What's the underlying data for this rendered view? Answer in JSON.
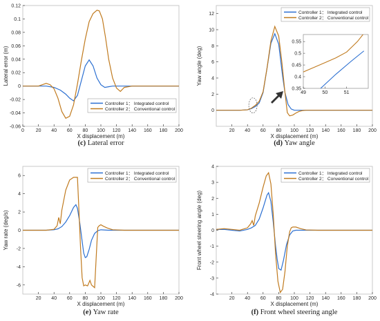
{
  "colors": {
    "ctrl1": "#2b6fd1",
    "ctrl2": "#c07a1e",
    "axis": "#262626",
    "frame": "#bdbdbd"
  },
  "legend": {
    "ctrl1": "Controller 1： Integrated control",
    "ctrl2": "Controller 2： Conventional control"
  },
  "chart_data": [
    {
      "type": "line",
      "caption_letter": "(c)",
      "caption_text": "Lateral error",
      "xlabel": "X displacement (m)",
      "ylabel": "Lateral error (m)",
      "xlim": [
        0,
        200
      ],
      "ylim": [
        -0.06,
        0.12
      ],
      "xticks": [
        0,
        20,
        40,
        60,
        80,
        100,
        120,
        140,
        160,
        180,
        200
      ],
      "yticks": [
        -0.06,
        -0.04,
        -0.02,
        0,
        0.02,
        0.04,
        0.06,
        0.08,
        0.1,
        0.12
      ],
      "ytick_labels": [
        "-0.06",
        "-0.04",
        "-0.02",
        "0",
        "0.02",
        "0.04",
        "0.06",
        "0.08",
        "0.1",
        "0.12"
      ],
      "legend_position": "bottom-right",
      "series": [
        {
          "name": "Controller 1： Integrated control",
          "color_key": "ctrl1",
          "x": [
            0,
            20,
            30,
            40,
            48,
            55,
            60,
            65,
            70,
            75,
            80,
            85,
            90,
            95,
            100,
            105,
            110,
            115,
            120,
            130,
            140,
            160,
            200
          ],
          "y": [
            0,
            0,
            0,
            -0.002,
            -0.006,
            -0.012,
            -0.018,
            -0.022,
            -0.014,
            0.008,
            0.03,
            0.039,
            0.03,
            0.012,
            0.002,
            -0.002,
            -0.001,
            0,
            0,
            0,
            0,
            0,
            0
          ]
        },
        {
          "name": "Controller 2： Conventional control",
          "color_key": "ctrl2",
          "x": [
            0,
            20,
            25,
            30,
            35,
            40,
            45,
            50,
            55,
            60,
            65,
            70,
            75,
            80,
            85,
            90,
            95,
            98,
            102,
            106,
            110,
            115,
            120,
            125,
            130,
            140,
            160,
            200
          ],
          "y": [
            0,
            0,
            0.002,
            0.004,
            0.002,
            -0.004,
            -0.018,
            -0.038,
            -0.048,
            -0.045,
            -0.028,
            0.003,
            0.038,
            0.07,
            0.096,
            0.108,
            0.113,
            0.112,
            0.1,
            0.072,
            0.04,
            0.012,
            -0.003,
            -0.008,
            -0.002,
            0,
            0,
            0
          ]
        }
      ]
    },
    {
      "type": "line",
      "caption_letter": "(d)",
      "caption_text": "Yaw angle",
      "xlabel": "X displacement (m)",
      "ylabel": "Yaw angle (deg)",
      "xlim": [
        0,
        200
      ],
      "ylim": [
        -2,
        13
      ],
      "xticks": [
        20,
        40,
        60,
        80,
        100,
        120,
        140,
        160,
        180,
        200
      ],
      "yticks": [
        0,
        2,
        4,
        6,
        8,
        10,
        12
      ],
      "ytick_labels": [
        "0",
        "2",
        "4",
        "6",
        "8",
        "10",
        "12"
      ],
      "legend_position": "top-right",
      "series": [
        {
          "name": "Controller 1： Integrated control",
          "color_key": "ctrl1",
          "x": [
            0,
            30,
            40,
            45,
            50,
            55,
            60,
            65,
            70,
            75,
            80,
            85,
            88,
            92,
            96,
            100,
            110,
            120,
            140,
            200
          ],
          "y": [
            0,
            0,
            0.05,
            0.2,
            0.45,
            0.9,
            2.2,
            5.2,
            8.3,
            9.5,
            8.2,
            4.2,
            2.2,
            0.7,
            0.15,
            0,
            0,
            0,
            0,
            0
          ]
        },
        {
          "name": "Controller 2： Conventional control",
          "color_key": "ctrl2",
          "x": [
            0,
            30,
            40,
            45,
            50,
            55,
            60,
            65,
            70,
            75,
            80,
            84,
            88,
            91,
            94,
            98,
            102,
            106,
            110,
            115,
            120,
            140,
            200
          ],
          "y": [
            0,
            0,
            0.05,
            0.25,
            0.6,
            1.1,
            2.3,
            5.2,
            8.6,
            10.4,
            9.2,
            6.0,
            2.2,
            -0.3,
            -0.7,
            -0.6,
            -0.35,
            -0.15,
            -0.05,
            0,
            0,
            0,
            0
          ]
        }
      ],
      "inset": {
        "xlim": [
          49,
          52
        ],
        "ylim": [
          0.35,
          0.58
        ],
        "xticks": [
          49,
          50,
          51
        ],
        "yticks": [
          0.35,
          0.4,
          0.45,
          0.5,
          0.55
        ],
        "ytick_labels": [
          "0.35",
          "0.4",
          "0.45",
          "0.5",
          "0.55"
        ],
        "series": [
          {
            "color_key": "ctrl1",
            "x": [
              49.8,
              50.5,
              51.2,
              51.8
            ],
            "y": [
              0.35,
              0.41,
              0.465,
              0.51
            ]
          },
          {
            "color_key": "ctrl2",
            "x": [
              49,
              49.5,
              50,
              50.5,
              51,
              51.5,
              51.8
            ],
            "y": [
              0.42,
              0.44,
              0.46,
              0.48,
              0.505,
              0.55,
              0.585
            ]
          }
        ]
      }
    },
    {
      "type": "line",
      "caption_letter": "(e)",
      "caption_text": "Yaw rate",
      "xlabel": "X displacement (m)",
      "ylabel": "Yaw rate (deg/s)",
      "xlim": [
        0,
        200
      ],
      "ylim": [
        -7,
        7
      ],
      "xticks": [
        20,
        40,
        60,
        80,
        100,
        120,
        140,
        160,
        180,
        200
      ],
      "yticks": [
        -6,
        -4,
        -2,
        0,
        2,
        4,
        6
      ],
      "ytick_labels": [
        "-6",
        "-4",
        "-2",
        "0",
        "2",
        "4",
        "6"
      ],
      "legend_position": "top-right",
      "series": [
        {
          "name": "Controller 1： Integrated control",
          "color_key": "ctrl1",
          "x": [
            0,
            30,
            40,
            45,
            50,
            55,
            60,
            65,
            68,
            70,
            73,
            76,
            78,
            80,
            82,
            85,
            88,
            92,
            96,
            100,
            110,
            120,
            200
          ],
          "y": [
            0,
            0,
            0.05,
            0.15,
            0.4,
            0.9,
            1.6,
            2.5,
            2.8,
            2.4,
            0.8,
            -1.2,
            -2.5,
            -3.0,
            -2.9,
            -2.1,
            -1.1,
            -0.35,
            -0.05,
            0.05,
            0,
            0,
            0
          ]
        },
        {
          "name": "Controller 2： Conventional control",
          "color_key": "ctrl2",
          "x": [
            0,
            30,
            40,
            44,
            46,
            48,
            50,
            55,
            60,
            65,
            70,
            72,
            74,
            76,
            78,
            80,
            83,
            86,
            88,
            92,
            94,
            96,
            98,
            100,
            103,
            108,
            115,
            130,
            200
          ],
          "y": [
            0,
            0,
            0.1,
            0.5,
            1.4,
            0.7,
            2.2,
            4.4,
            5.5,
            5.8,
            5.8,
            2.0,
            -2.0,
            -5.2,
            -6.1,
            -6.0,
            -6.1,
            -5.5,
            -6.0,
            -6.3,
            -3.0,
            0.3,
            0.5,
            0.6,
            0.45,
            0.25,
            0.05,
            0,
            0
          ]
        }
      ]
    },
    {
      "type": "line",
      "caption_letter": "(f)",
      "caption_text": "Front wheel steering angle",
      "xlabel": "X displacement (m)",
      "ylabel": "Front wheel steering angle (deg)",
      "xlim": [
        0,
        200
      ],
      "ylim": [
        -4,
        4
      ],
      "xticks": [
        20,
        40,
        60,
        80,
        100,
        120,
        140,
        160,
        180,
        200
      ],
      "yticks": [
        -4,
        -3,
        -2,
        -1,
        0,
        1,
        2,
        3,
        4
      ],
      "ytick_labels": [
        "-4",
        "-3",
        "-2",
        "-1",
        "0",
        "1",
        "2",
        "3",
        "4"
      ],
      "legend_position": "top-right",
      "series": [
        {
          "name": "Controller 1： Integrated control",
          "color_key": "ctrl1",
          "x": [
            0,
            10,
            20,
            30,
            40,
            45,
            50,
            55,
            60,
            65,
            67,
            70,
            73,
            76,
            78,
            80,
            83,
            86,
            90,
            94,
            98,
            102,
            110,
            120,
            200
          ],
          "y": [
            0.05,
            0.05,
            0,
            -0.05,
            0.05,
            0.15,
            0.3,
            0.7,
            1.4,
            2.2,
            2.35,
            1.8,
            0.5,
            -1.0,
            -1.8,
            -2.4,
            -2.5,
            -1.9,
            -0.9,
            -0.3,
            -0.05,
            0,
            0,
            0,
            0
          ]
        },
        {
          "name": "Controller 2： Conventional control",
          "color_key": "ctrl2",
          "x": [
            0,
            10,
            20,
            30,
            40,
            44,
            46,
            48,
            50,
            55,
            60,
            64,
            67,
            70,
            73,
            76,
            79,
            82,
            85,
            88,
            91,
            94,
            96,
            98,
            102,
            108,
            115,
            130,
            200
          ],
          "y": [
            0.05,
            0.1,
            0.05,
            0,
            0.15,
            0.4,
            0.6,
            0.3,
            0.9,
            1.7,
            2.7,
            3.4,
            3.6,
            2.9,
            1.0,
            -1.5,
            -3.2,
            -3.9,
            -3.7,
            -2.6,
            -1.0,
            -0.1,
            0.15,
            0.2,
            0.2,
            0.1,
            0.02,
            0,
            0
          ]
        }
      ]
    }
  ]
}
